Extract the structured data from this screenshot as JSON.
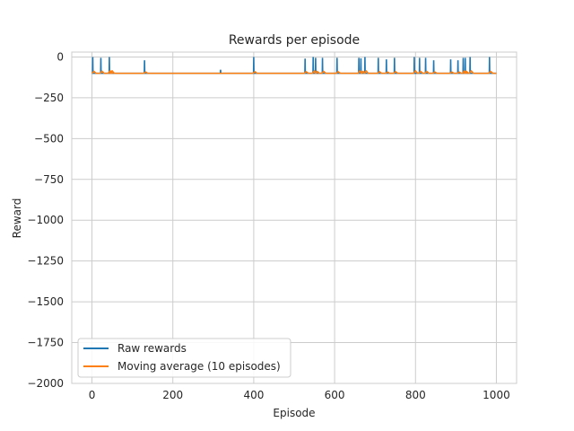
{
  "chart_data": {
    "type": "line",
    "title": "Rewards per episode",
    "xlabel": "Episode",
    "ylabel": "Reward",
    "xlim": [
      -50,
      1050
    ],
    "ylim": [
      -2000,
      30
    ],
    "xticks": [
      0,
      200,
      400,
      600,
      800,
      1000
    ],
    "yticks": [
      0,
      -250,
      -500,
      -750,
      -1000,
      -1250,
      -1500,
      -1750,
      -2000
    ],
    "xtick_labels": [
      "0",
      "200",
      "400",
      "600",
      "800",
      "1000"
    ],
    "ytick_labels": [
      "0",
      "−250",
      "−500",
      "−750",
      "−1000",
      "−1250",
      "−1500",
      "−1750",
      "−2000"
    ],
    "grid": true,
    "legend_position": "lower-left",
    "baseline": -100,
    "episodes": [
      0,
      1000
    ],
    "series": [
      {
        "name": "Raw rewards",
        "color": "#1f77b4",
        "spikes": [
          [
            2,
            0
          ],
          [
            22,
            -5
          ],
          [
            43,
            0
          ],
          [
            130,
            -20
          ],
          [
            318,
            -78
          ],
          [
            400,
            0
          ],
          [
            527,
            -10
          ],
          [
            547,
            0
          ],
          [
            553,
            -5
          ],
          [
            570,
            -5
          ],
          [
            606,
            -5
          ],
          [
            660,
            -5
          ],
          [
            665,
            -8
          ],
          [
            675,
            0
          ],
          [
            708,
            -5
          ],
          [
            728,
            -15
          ],
          [
            748,
            -5
          ],
          [
            797,
            0
          ],
          [
            810,
            -5
          ],
          [
            825,
            -5
          ],
          [
            845,
            -20
          ],
          [
            887,
            -15
          ],
          [
            905,
            -20
          ],
          [
            918,
            -5
          ],
          [
            923,
            -5
          ],
          [
            935,
            0
          ],
          [
            983,
            0
          ]
        ]
      },
      {
        "name": "Moving average (10 episodes)",
        "color": "#ff7f0e",
        "bumps": [
          [
            5,
            -88
          ],
          [
            25,
            -87
          ],
          [
            45,
            -85
          ],
          [
            50,
            -85
          ],
          [
            133,
            -92
          ],
          [
            403,
            -90
          ],
          [
            530,
            -90
          ],
          [
            550,
            -85
          ],
          [
            557,
            -88
          ],
          [
            573,
            -88
          ],
          [
            609,
            -90
          ],
          [
            663,
            -85
          ],
          [
            670,
            -88
          ],
          [
            678,
            -85
          ],
          [
            711,
            -90
          ],
          [
            731,
            -92
          ],
          [
            751,
            -90
          ],
          [
            800,
            -85
          ],
          [
            813,
            -88
          ],
          [
            828,
            -88
          ],
          [
            848,
            -92
          ],
          [
            890,
            -92
          ],
          [
            908,
            -92
          ],
          [
            921,
            -85
          ],
          [
            926,
            -88
          ],
          [
            938,
            -85
          ],
          [
            986,
            -88
          ]
        ]
      }
    ]
  }
}
